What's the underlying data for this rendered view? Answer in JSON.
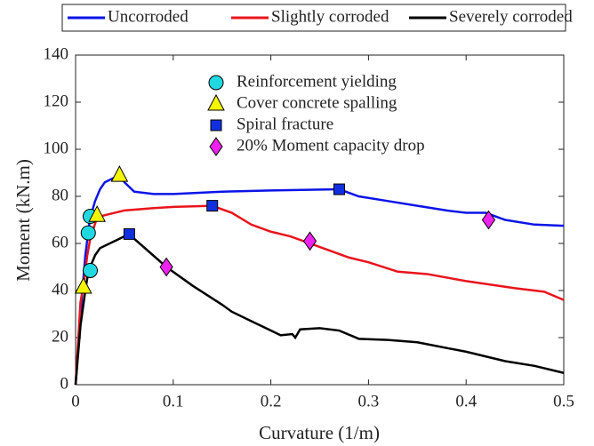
{
  "chart_data": {
    "type": "line",
    "xlabel": "Curvature (1/m)",
    "ylabel": "Moment (kN.m)",
    "xlim": [
      0,
      0.5
    ],
    "ylim": [
      0,
      140
    ],
    "xticks": [
      0,
      0.1,
      0.2,
      0.3,
      0.4,
      0.5
    ],
    "yticks": [
      0,
      20,
      40,
      60,
      80,
      100,
      120,
      140
    ],
    "grid": false,
    "legend": "top",
    "series": [
      {
        "name": "Uncorroded",
        "color": "#0a14e6",
        "x": [
          0,
          0.005,
          0.01,
          0.013,
          0.015,
          0.02,
          0.025,
          0.03,
          0.04,
          0.045,
          0.05,
          0.06,
          0.08,
          0.1,
          0.15,
          0.2,
          0.27,
          0.29,
          0.32,
          0.35,
          0.38,
          0.4,
          0.42,
          0.44,
          0.47,
          0.5
        ],
        "values": [
          0,
          30,
          55,
          65,
          71,
          78,
          83,
          86,
          88,
          89,
          86,
          82,
          81,
          81,
          82,
          82.5,
          83,
          80,
          78,
          76,
          74,
          73,
          73,
          70,
          68,
          67.5
        ]
      },
      {
        "name": "Slightly corroded",
        "color": "#e8141c",
        "x": [
          0,
          0.005,
          0.008,
          0.012,
          0.015,
          0.022,
          0.03,
          0.05,
          0.08,
          0.1,
          0.14,
          0.16,
          0.18,
          0.2,
          0.22,
          0.24,
          0.26,
          0.28,
          0.3,
          0.33,
          0.36,
          0.4,
          0.45,
          0.48,
          0.5
        ],
        "values": [
          0,
          35,
          42,
          55,
          62,
          71,
          72,
          74,
          75,
          75.5,
          76,
          73,
          68,
          65,
          63,
          60,
          57,
          54,
          52,
          48,
          47,
          44,
          41,
          39.5,
          36
        ]
      },
      {
        "name": "Severely corroded",
        "color": "#000000",
        "x": [
          0,
          0.005,
          0.01,
          0.013,
          0.02,
          0.025,
          0.04,
          0.055,
          0.06,
          0.093,
          0.12,
          0.15,
          0.16,
          0.18,
          0.2,
          0.21,
          0.222,
          0.225,
          0.23,
          0.25,
          0.27,
          0.29,
          0.32,
          0.35,
          0.4,
          0.44,
          0.47,
          0.5
        ],
        "values": [
          0,
          25,
          40,
          48,
          55,
          58,
          61,
          64,
          62,
          50,
          42,
          34,
          31,
          27,
          23,
          21,
          21.5,
          20,
          23.5,
          24,
          23,
          19.5,
          19,
          18,
          14,
          10,
          8,
          5
        ]
      }
    ],
    "markers": [
      {
        "name": "Reinforcement yielding",
        "color": "#22d8e0",
        "shape": "circle",
        "x": [
          0.015,
          0.013,
          0.015
        ],
        "values": [
          71.5,
          64.5,
          48.5
        ]
      },
      {
        "name": "Cover concrete spalling",
        "color": "#f5f500",
        "shape": "triangle",
        "x": [
          0.045,
          0.022,
          0.008
        ],
        "values": [
          89,
          72,
          41.5
        ]
      },
      {
        "name": "Spiral fracture",
        "color": "#1030e0",
        "shape": "square",
        "x": [
          0.27,
          0.14,
          0.055
        ],
        "values": [
          83,
          76,
          64
        ]
      },
      {
        "name": "20% Moment capacity drop",
        "color": "#ee22ee",
        "shape": "diamond",
        "x": [
          0.423,
          0.24,
          0.093
        ],
        "values": [
          70,
          61,
          50
        ]
      }
    ]
  }
}
